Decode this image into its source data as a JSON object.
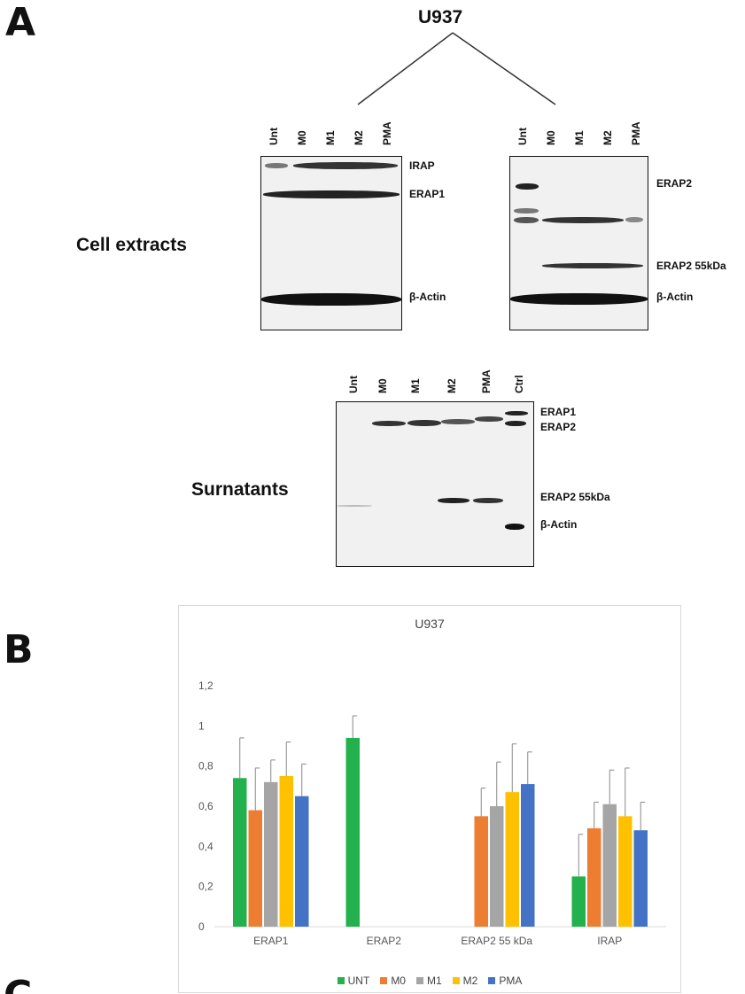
{
  "panel_a": {
    "letter": "A",
    "cell_line": "U937",
    "section_cell_extracts": "Cell extracts",
    "section_supernatants": "Surnatants",
    "blot1": {
      "lanes": [
        "Unt",
        "M0",
        "M1",
        "M2",
        "PMA"
      ],
      "bands": [
        "IRAP",
        "ERAP1",
        "β-Actin"
      ]
    },
    "blot2": {
      "lanes": [
        "Unt",
        "M0",
        "M1",
        "M2",
        "PMA"
      ],
      "bands": [
        "ERAP2",
        "ERAP2 55kDa",
        "β-Actin"
      ]
    },
    "blot3": {
      "lanes": [
        "Unt",
        "M0",
        "M1",
        "M2",
        "PMA",
        "Ctrl"
      ],
      "bands": [
        "ERAP1",
        "ERAP2",
        "ERAP2 55kDa",
        "β-Actin"
      ]
    }
  },
  "panel_b": {
    "letter": "B"
  },
  "panel_c": {
    "letter": "C"
  },
  "chart_data": {
    "type": "bar",
    "title": "U937",
    "categories": [
      "ERAP1",
      "ERAP2",
      "ERAP2 55 kDa",
      "IRAP"
    ],
    "ylim": [
      0,
      1.2
    ],
    "yticks": [
      "0",
      "0,2",
      "0,4",
      "0,6",
      "0,8",
      "1",
      "1,2"
    ],
    "grid": false,
    "legend_position": "bottom",
    "series": [
      {
        "name": "UNT",
        "color": "#22b14c",
        "values": [
          0.74,
          0.94,
          0,
          0.25
        ],
        "errors": [
          0.2,
          0.11,
          0,
          0.21
        ]
      },
      {
        "name": "M0",
        "color": "#ed7d31",
        "values": [
          0.58,
          0,
          0.55,
          0.49
        ],
        "errors": [
          0.21,
          0,
          0.14,
          0.13
        ]
      },
      {
        "name": "M1",
        "color": "#a5a5a5",
        "values": [
          0.72,
          0,
          0.6,
          0.61
        ],
        "errors": [
          0.11,
          0,
          0.22,
          0.17
        ]
      },
      {
        "name": "M2",
        "color": "#ffc000",
        "values": [
          0.75,
          0,
          0.67,
          0.55
        ],
        "errors": [
          0.17,
          0,
          0.24,
          0.24
        ]
      },
      {
        "name": "PMA",
        "color": "#4472c4",
        "values": [
          0.65,
          0,
          0.71,
          0.48
        ],
        "errors": [
          0.16,
          0,
          0.16,
          0.14
        ]
      }
    ]
  }
}
